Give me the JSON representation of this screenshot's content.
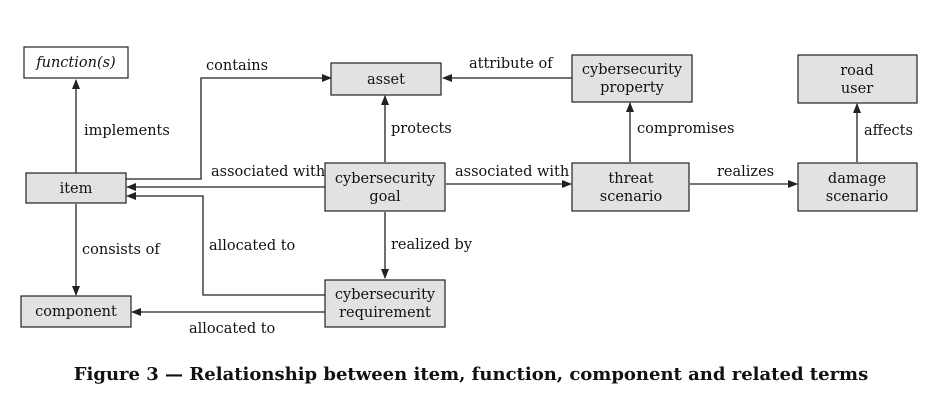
{
  "nodes": {
    "function": [
      "function(s)"
    ],
    "asset": [
      "asset"
    ],
    "cyber_property": [
      "cybersecurity",
      "property"
    ],
    "road_user": [
      "road",
      "user"
    ],
    "item": [
      "item"
    ],
    "cyber_goal": [
      "cybersecurity",
      "goal"
    ],
    "threat": [
      "threat",
      "scenario"
    ],
    "damage": [
      "damage",
      "scenario"
    ],
    "component": [
      "component"
    ],
    "cyber_req": [
      "cybersecurity",
      "requirement"
    ]
  },
  "edges": {
    "implements": "implements",
    "contains": "contains",
    "attribute_of": "attribute of",
    "protects": "protects",
    "compromises": "compromises",
    "affects": "affects",
    "associated_with_left": "associated with",
    "associated_with_right": "associated with",
    "realizes": "realizes",
    "consists_of": "consists of",
    "allocated_to_req": "allocated to",
    "realized_by": "realized by",
    "allocated_to_comp": "allocated to"
  },
  "colors": {
    "box_fill": "#e2e2e2",
    "white_box_fill": "#ffffff",
    "stroke": "#222222"
  },
  "caption": "Figure 3 — Relationship between item, function, component and related terms"
}
